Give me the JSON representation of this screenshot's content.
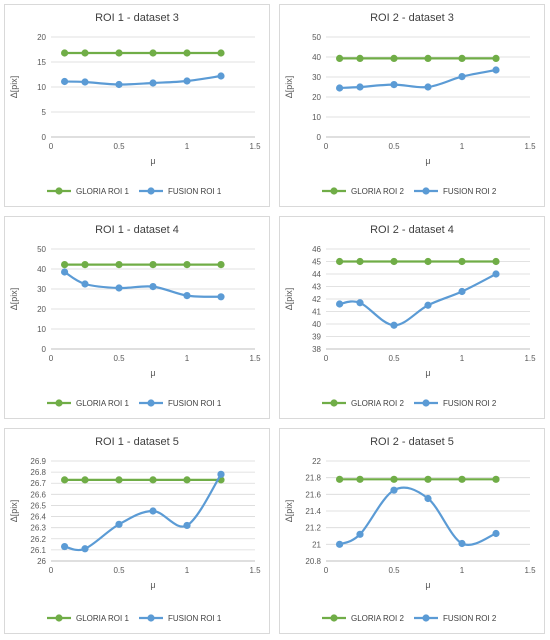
{
  "colors": {
    "gloria": "#70ad47",
    "fusion": "#5b9bd5",
    "grid": "#d9d9d9",
    "axis": "#bfbfbf"
  },
  "chart_data": [
    {
      "type": "line",
      "title": "ROI 1 - dataset 3",
      "xlabel": "μ",
      "ylabel": "Δ[pix]",
      "x": [
        0.1,
        0.25,
        0.5,
        0.75,
        1.0,
        1.25
      ],
      "xlim": [
        0,
        1.5
      ],
      "xticks": [
        "0",
        "0.5",
        "1",
        "1.5"
      ],
      "ylim": [
        0,
        20
      ],
      "yticks": [
        "0",
        "5",
        "10",
        "15",
        "20"
      ],
      "grid": true,
      "legend": "bottom",
      "series": [
        {
          "name": "GLORIA ROI 1",
          "values": [
            16.8,
            16.8,
            16.8,
            16.8,
            16.8,
            16.8
          ],
          "smooth": false
        },
        {
          "name": "FUSION ROI 1",
          "values": [
            11.1,
            11.0,
            10.5,
            10.8,
            11.2,
            12.2
          ],
          "smooth": true
        }
      ]
    },
    {
      "type": "line",
      "title": "ROI 2 - dataset 3",
      "xlabel": "μ",
      "ylabel": "Δ[pix]",
      "x": [
        0.1,
        0.25,
        0.5,
        0.75,
        1.0,
        1.25
      ],
      "xlim": [
        0,
        1.5
      ],
      "xticks": [
        "0",
        "0.5",
        "1",
        "1.5"
      ],
      "ylim": [
        0,
        50
      ],
      "yticks": [
        "0",
        "10",
        "20",
        "30",
        "40",
        "50"
      ],
      "grid": true,
      "legend": "bottom",
      "series": [
        {
          "name": "GLORIA ROI 2",
          "values": [
            39.3,
            39.3,
            39.3,
            39.3,
            39.3,
            39.3
          ],
          "smooth": false
        },
        {
          "name": "FUSION ROI 2",
          "values": [
            24.5,
            25.0,
            26.2,
            25.0,
            30.2,
            33.5
          ],
          "smooth": true
        }
      ]
    },
    {
      "type": "line",
      "title": "ROI 1 - dataset 4",
      "xlabel": "μ",
      "ylabel": "Δ[pix]",
      "x": [
        0.1,
        0.25,
        0.5,
        0.75,
        1.0,
        1.25
      ],
      "xlim": [
        0,
        1.5
      ],
      "xticks": [
        "0",
        "0.5",
        "1",
        "1.5"
      ],
      "ylim": [
        0,
        50
      ],
      "yticks": [
        "0",
        "10",
        "20",
        "30",
        "40",
        "50"
      ],
      "grid": true,
      "legend": "bottom",
      "series": [
        {
          "name": "GLORIA ROI 1",
          "values": [
            42.2,
            42.2,
            42.2,
            42.2,
            42.2,
            42.2
          ],
          "smooth": false
        },
        {
          "name": "FUSION ROI 1",
          "values": [
            38.5,
            32.5,
            30.5,
            31.2,
            26.7,
            26.1
          ],
          "smooth": true
        }
      ]
    },
    {
      "type": "line",
      "title": "ROI 2 - dataset 4",
      "xlabel": "μ",
      "ylabel": "Δ[pix]",
      "x": [
        0.1,
        0.25,
        0.5,
        0.75,
        1.0,
        1.25
      ],
      "xlim": [
        0,
        1.5
      ],
      "xticks": [
        "0",
        "0.5",
        "1",
        "1.5"
      ],
      "ylim": [
        38,
        46
      ],
      "yticks": [
        "38",
        "39",
        "40",
        "41",
        "42",
        "43",
        "44",
        "45",
        "46"
      ],
      "grid": true,
      "legend": "bottom",
      "series": [
        {
          "name": "GLORIA ROI 2",
          "values": [
            45.0,
            45.0,
            45.0,
            45.0,
            45.0,
            45.0
          ],
          "smooth": false
        },
        {
          "name": "FUSION ROI 2",
          "values": [
            41.6,
            41.7,
            39.9,
            41.5,
            42.6,
            44.0
          ],
          "smooth": true
        }
      ]
    },
    {
      "type": "line",
      "title": "ROI 1 - dataset 5",
      "xlabel": "μ",
      "ylabel": "Δ[pix]",
      "x": [
        0.1,
        0.25,
        0.5,
        0.75,
        1.0,
        1.25
      ],
      "xlim": [
        0,
        1.5
      ],
      "xticks": [
        "0",
        "0.5",
        "1",
        "1.5"
      ],
      "ylim": [
        26.0,
        26.9
      ],
      "yticks": [
        "26",
        "26.1",
        "26.2",
        "26.3",
        "26.4",
        "26.5",
        "26.6",
        "26.7",
        "26.8",
        "26.9"
      ],
      "grid": true,
      "legend": "bottom",
      "series": [
        {
          "name": "GLORIA ROI 1",
          "values": [
            26.73,
            26.73,
            26.73,
            26.73,
            26.73,
            26.73
          ],
          "smooth": false
        },
        {
          "name": "FUSION ROI 1",
          "values": [
            26.13,
            26.11,
            26.33,
            26.45,
            26.32,
            26.78
          ],
          "smooth": true
        }
      ]
    },
    {
      "type": "line",
      "title": "ROI 2 - dataset 5",
      "xlabel": "μ",
      "ylabel": "Δ[pix]",
      "x": [
        0.1,
        0.25,
        0.5,
        0.75,
        1.0,
        1.25
      ],
      "xlim": [
        0,
        1.5
      ],
      "xticks": [
        "0",
        "0.5",
        "1",
        "1.5"
      ],
      "ylim": [
        20.8,
        22.0
      ],
      "yticks": [
        "20.8",
        "21",
        "21.2",
        "21.4",
        "21.6",
        "21.8",
        "22"
      ],
      "grid": true,
      "legend": "bottom",
      "series": [
        {
          "name": "GLORIA ROI 2",
          "values": [
            21.78,
            21.78,
            21.78,
            21.78,
            21.78,
            21.78
          ],
          "smooth": false
        },
        {
          "name": "FUSION ROI 2",
          "values": [
            21.0,
            21.12,
            21.65,
            21.55,
            21.01,
            21.13
          ],
          "smooth": true
        }
      ]
    }
  ]
}
